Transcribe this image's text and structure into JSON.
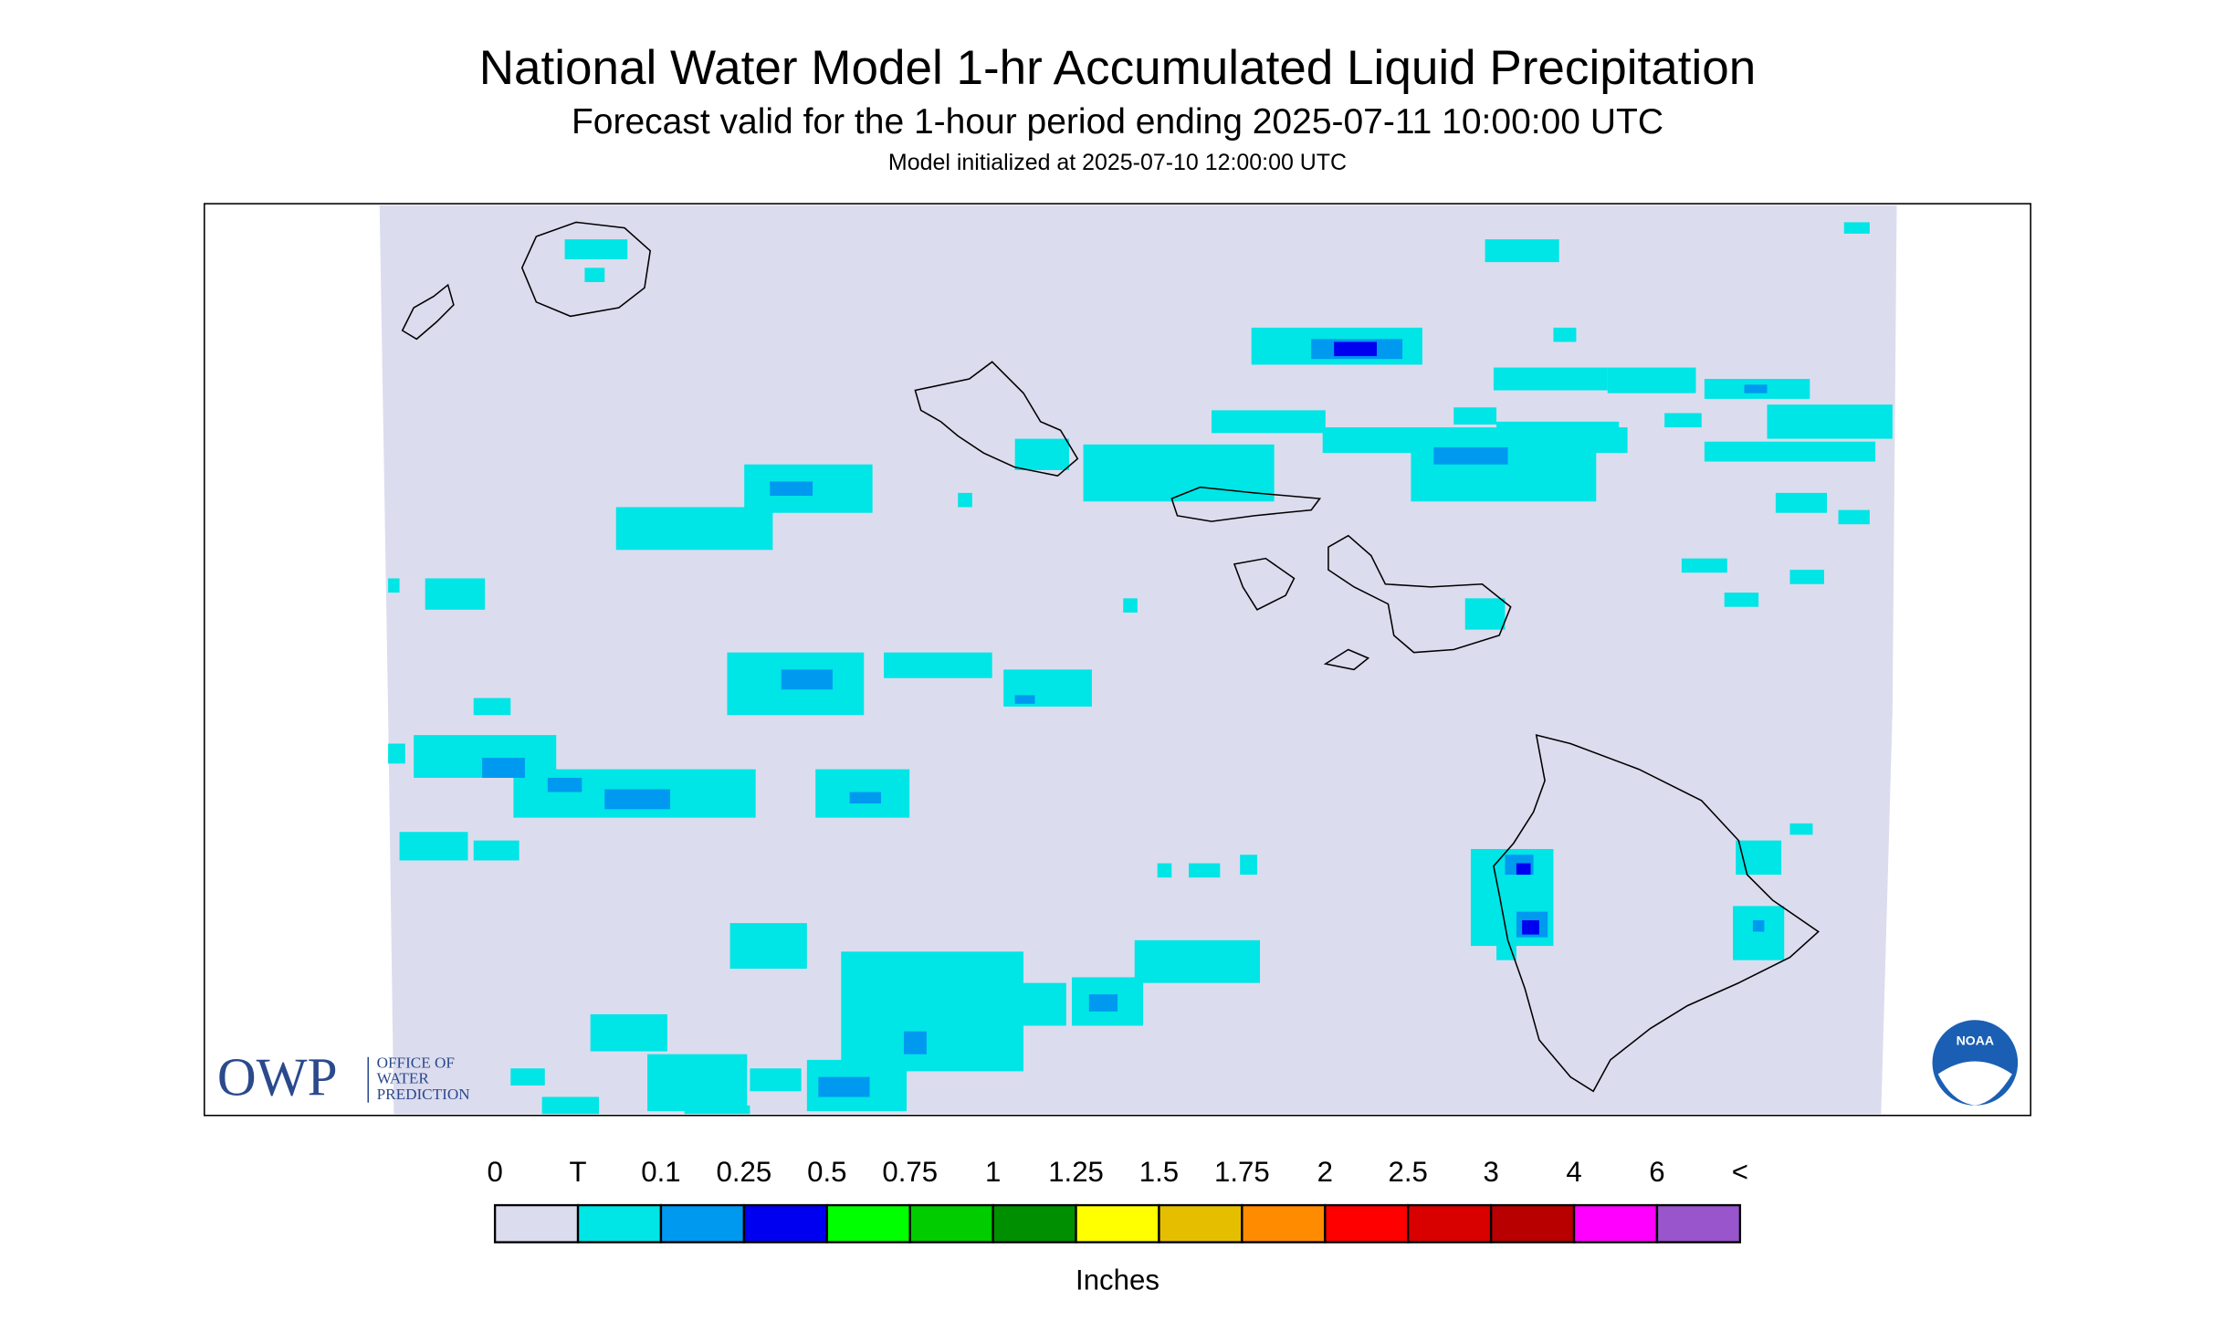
{
  "header": {
    "title": "National Water Model 1-hr Accumulated Liquid Precipitation",
    "subtitle": "Forecast valid for the 1-hour period ending 2025-07-11 10:00:00 UTC",
    "initialized": "Model initialized at 2025-07-10 12:00:00 UTC"
  },
  "legend": {
    "labels": [
      "0",
      "T",
      "0.1",
      "0.25",
      "0.5",
      "0.75",
      "1",
      "1.25",
      "1.5",
      "1.75",
      "2",
      "2.5",
      "3",
      "4",
      "6",
      "<"
    ],
    "colors": [
      "#dcdcef",
      "#00e5e5",
      "#0099f0",
      "#0000f0",
      "#00ff00",
      "#00cc00",
      "#008f00",
      "#ffff00",
      "#e6be00",
      "#ff8c00",
      "#ff0000",
      "#d90000",
      "#b80000",
      "#ff00ff",
      "#9955cc"
    ],
    "units": "Inches"
  },
  "logos": {
    "owp": "OWP",
    "owp_lines": [
      "OFFICE OF",
      "WATER",
      "PREDICTION"
    ],
    "noaa": "NOAA"
  }
}
